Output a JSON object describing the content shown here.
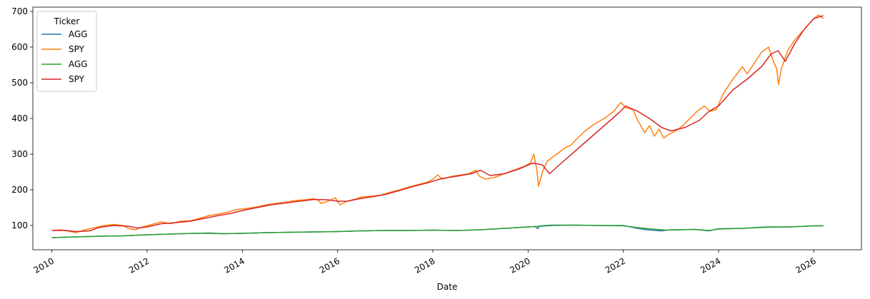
{
  "chart_data": {
    "type": "line",
    "title": "",
    "xlabel": "Date",
    "ylabel": "",
    "xlim": [
      2009.6,
      2027.0
    ],
    "ylim": [
      32,
      712
    ],
    "x_ticks": [
      {
        "value": 2010,
        "label": "2010"
      },
      {
        "value": 2012,
        "label": "2012"
      },
      {
        "value": 2014,
        "label": "2014"
      },
      {
        "value": 2016,
        "label": "2016"
      },
      {
        "value": 2018,
        "label": "2018"
      },
      {
        "value": 2020,
        "label": "2020"
      },
      {
        "value": 2022,
        "label": "2022"
      },
      {
        "value": 2024,
        "label": "2024"
      },
      {
        "value": 2026,
        "label": "2026"
      }
    ],
    "y_ticks": [
      {
        "value": 100,
        "label": "100"
      },
      {
        "value": 200,
        "label": "200"
      },
      {
        "value": 300,
        "label": "300"
      },
      {
        "value": 400,
        "label": "400"
      },
      {
        "value": 500,
        "label": "500"
      },
      {
        "value": 600,
        "label": "600"
      },
      {
        "value": 700,
        "label": "700"
      }
    ],
    "grid": false,
    "legend": {
      "title": "Ticker",
      "placement": "upper-left",
      "entries": [
        "AGG",
        "SPY",
        "AGG",
        "SPY"
      ]
    },
    "series": [
      {
        "name": "AGG",
        "color": "#1f77b4",
        "x": [
          2010.0,
          2010.5,
          2011.0,
          2011.5,
          2012.0,
          2012.5,
          2013.0,
          2013.3,
          2013.6,
          2014.0,
          2014.5,
          2015.0,
          2015.5,
          2016.0,
          2016.5,
          2017.0,
          2017.5,
          2018.0,
          2018.5,
          2019.0,
          2019.5,
          2020.0,
          2020.15,
          2020.2,
          2020.25,
          2020.5,
          2021.0,
          2021.5,
          2022.0,
          2022.3,
          2022.5,
          2022.8,
          2023.0,
          2023.5,
          2023.8,
          2024.0,
          2024.5,
          2025.0,
          2025.5,
          2026.0,
          2026.2
        ],
        "y": [
          66,
          68,
          70,
          71,
          74,
          76,
          78,
          79,
          77,
          78,
          80,
          81,
          82,
          83,
          85,
          86,
          86,
          87,
          86,
          88,
          92,
          96,
          97,
          91,
          99,
          101,
          101,
          100,
          100,
          92,
          88,
          85,
          88,
          89,
          85,
          91,
          92,
          96,
          96,
          99,
          99
        ]
      },
      {
        "name": "SPY",
        "color": "#ff7f0e",
        "x": [
          2010.0,
          2010.2,
          2010.35,
          2010.5,
          2010.7,
          2010.9,
          2011.1,
          2011.3,
          2011.5,
          2011.6,
          2011.75,
          2011.9,
          2012.1,
          2012.3,
          2012.5,
          2012.7,
          2012.9,
          2013.1,
          2013.3,
          2013.5,
          2013.7,
          2013.9,
          2014.1,
          2014.3,
          2014.5,
          2014.7,
          2014.9,
          2015.1,
          2015.3,
          2015.5,
          2015.6,
          2015.65,
          2015.8,
          2015.95,
          2016.05,
          2016.2,
          2016.4,
          2016.5,
          2016.7,
          2016.9,
          2017.1,
          2017.3,
          2017.5,
          2017.7,
          2017.9,
          2018.0,
          2018.1,
          2018.2,
          2018.4,
          2018.6,
          2018.75,
          2018.9,
          2018.98,
          2019.1,
          2019.3,
          2019.5,
          2019.7,
          2019.9,
          2020.05,
          2020.12,
          2020.18,
          2020.22,
          2020.3,
          2020.4,
          2020.6,
          2020.8,
          2020.9,
          2021.0,
          2021.2,
          2021.4,
          2021.6,
          2021.8,
          2021.95,
          2022.05,
          2022.2,
          2022.3,
          2022.45,
          2022.55,
          2022.65,
          2022.75,
          2022.85,
          2022.95,
          2023.1,
          2023.25,
          2023.4,
          2023.55,
          2023.7,
          2023.82,
          2023.95,
          2024.1,
          2024.3,
          2024.5,
          2024.6,
          2024.75,
          2024.9,
          2025.05,
          2025.15,
          2025.22,
          2025.26,
          2025.32,
          2025.45,
          2025.6,
          2025.8,
          2026.0,
          2026.1,
          2026.2
        ],
        "y": [
          86,
          88,
          84,
          80,
          88,
          94,
          100,
          103,
          100,
          92,
          88,
          96,
          103,
          110,
          105,
          112,
          113,
          120,
          128,
          132,
          138,
          145,
          148,
          152,
          158,
          162,
          165,
          170,
          172,
          175,
          170,
          162,
          168,
          178,
          158,
          168,
          175,
          180,
          182,
          185,
          193,
          200,
          208,
          215,
          222,
          230,
          242,
          230,
          238,
          242,
          245,
          255,
          238,
          230,
          235,
          245,
          255,
          265,
          275,
          300,
          260,
          210,
          250,
          280,
          300,
          320,
          325,
          340,
          365,
          385,
          400,
          420,
          445,
          430,
          425,
          395,
          360,
          380,
          350,
          370,
          345,
          355,
          365,
          380,
          400,
          420,
          435,
          420,
          425,
          470,
          510,
          545,
          525,
          555,
          585,
          600,
          560,
          540,
          495,
          540,
          590,
          620,
          650,
          680,
          690,
          680
        ]
      },
      {
        "name": "AGG",
        "color": "#2ca02c",
        "x": [
          2010.0,
          2010.5,
          2011.0,
          2011.5,
          2012.0,
          2012.5,
          2013.0,
          2013.3,
          2013.6,
          2014.0,
          2014.5,
          2015.0,
          2015.5,
          2016.0,
          2016.5,
          2017.0,
          2017.5,
          2018.0,
          2018.5,
          2019.0,
          2019.5,
          2020.0,
          2020.5,
          2021.0,
          2021.5,
          2022.0,
          2022.3,
          2022.6,
          2022.9,
          2023.2,
          2023.5,
          2023.8,
          2024.0,
          2024.5,
          2025.0,
          2025.5,
          2026.0,
          2026.2
        ],
        "y": [
          66,
          68,
          70,
          71,
          74,
          76,
          78,
          78,
          77,
          78,
          80,
          81,
          82,
          83,
          85,
          86,
          86,
          87,
          86,
          88,
          92,
          96,
          100,
          101,
          100,
          99,
          94,
          90,
          87,
          88,
          89,
          86,
          90,
          92,
          95,
          96,
          99,
          99
        ]
      },
      {
        "name": "SPY",
        "color": "#d62728",
        "x": [
          2010.0,
          2010.3,
          2010.5,
          2010.8,
          2011.0,
          2011.3,
          2011.6,
          2011.8,
          2012.0,
          2012.3,
          2012.6,
          2012.9,
          2013.2,
          2013.5,
          2013.8,
          2014.0,
          2014.3,
          2014.6,
          2014.9,
          2015.2,
          2015.5,
          2015.8,
          2016.0,
          2016.2,
          2016.5,
          2016.8,
          2017.0,
          2017.3,
          2017.6,
          2017.9,
          2018.2,
          2018.5,
          2018.8,
          2019.0,
          2019.2,
          2019.5,
          2019.8,
          2020.1,
          2020.3,
          2020.45,
          2020.7,
          2021.0,
          2021.3,
          2021.6,
          2021.9,
          2022.05,
          2022.3,
          2022.55,
          2022.8,
          2023.0,
          2023.3,
          2023.6,
          2023.8,
          2024.0,
          2024.3,
          2024.6,
          2024.9,
          2025.1,
          2025.25,
          2025.4,
          2025.6,
          2025.8,
          2026.0,
          2026.2
        ],
        "y": [
          86,
          86,
          83,
          85,
          95,
          100,
          98,
          93,
          96,
          105,
          108,
          112,
          120,
          128,
          135,
          142,
          150,
          158,
          163,
          168,
          173,
          172,
          168,
          168,
          176,
          182,
          187,
          198,
          210,
          220,
          232,
          238,
          245,
          255,
          240,
          245,
          258,
          275,
          270,
          245,
          275,
          310,
          345,
          380,
          415,
          435,
          420,
          400,
          375,
          365,
          375,
          395,
          420,
          435,
          480,
          510,
          545,
          580,
          590,
          560,
          610,
          650,
          680,
          688
        ]
      }
    ]
  }
}
